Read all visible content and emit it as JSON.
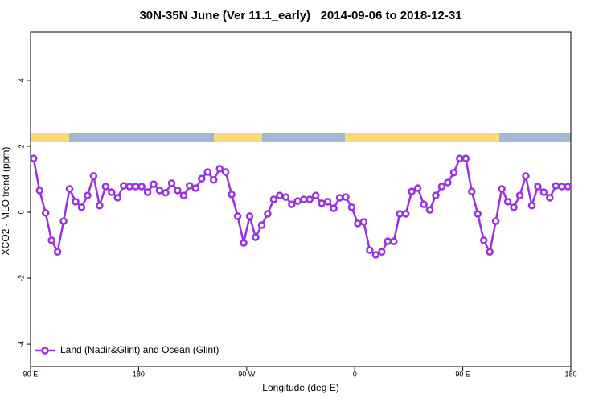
{
  "chart_data": {
    "type": "line",
    "title": "30N-35N June (Ver 11.1_early)   2014-09-06 to 2018-12-31",
    "x_label": "Longitude (deg E)",
    "y_label": "XCO2 - MLO trend (ppm)",
    "xlim": [
      90,
      540
    ],
    "ylim": [
      -4.68,
      5.46
    ],
    "xticks": [
      {
        "value": 90,
        "label": "90 E"
      },
      180,
      {
        "value": 270,
        "label": "90 W"
      },
      {
        "value": 360,
        "label": "0"
      },
      {
        "value": 450,
        "label": "90 E"
      },
      {
        "value": 540,
        "label": "180"
      }
    ],
    "yticks": [
      -4,
      -2,
      0,
      2,
      4
    ],
    "legend": "bottom-left",
    "x": [
      92.5,
      97.5,
      102.5,
      107.5,
      112.5,
      117.5,
      122.5,
      127.5,
      132.5,
      137.5,
      142.5,
      147.5,
      152.5,
      157.5,
      162.5,
      167.5,
      172.5,
      177.5,
      182.5,
      187.5,
      192.5,
      197.5,
      202.5,
      207.5,
      212.5,
      217.5,
      222.5,
      227.5,
      232.5,
      237.5,
      242.5,
      247.5,
      252.5,
      257.5,
      262.5,
      267.5,
      272.5,
      277.5,
      282.5,
      287.5,
      292.5,
      297.5,
      302.5,
      307.5,
      312.5,
      317.5,
      322.5,
      327.5,
      332.5,
      337.5,
      342.5,
      347.5,
      352.5,
      357.5,
      362.5,
      367.5,
      372.5,
      377.5,
      382.5,
      387.5,
      392.5,
      397.5,
      402.5,
      407.5,
      412.5,
      417.5,
      422.5,
      427.5,
      432.5,
      437.5,
      442.5,
      447.5,
      452.5,
      457.5,
      462.5,
      467.5,
      472.5,
      477.5,
      482.5,
      487.5,
      492.5,
      497.5,
      502.5,
      507.5,
      512.5,
      517.5,
      522.5,
      527.5,
      532.5,
      537.5
    ],
    "series": [
      {
        "name": "Land (Nadir&Glint) and Ocean (Glint)",
        "color": "#9b30e0",
        "values": [
          1.63,
          0.66,
          -0.02,
          -0.85,
          -1.2,
          -0.27,
          0.71,
          0.32,
          0.15,
          0.51,
          1.1,
          0.2,
          0.78,
          0.61,
          0.44,
          0.8,
          0.78,
          0.78,
          0.78,
          0.61,
          0.85,
          0.66,
          0.59,
          0.88,
          0.66,
          0.51,
          0.8,
          0.73,
          1.02,
          1.22,
          0.98,
          1.32,
          1.22,
          0.54,
          -0.12,
          -0.93,
          -0.12,
          -0.76,
          -0.39,
          -0.05,
          0.39,
          0.51,
          0.46,
          0.24,
          0.34,
          0.39,
          0.39,
          0.51,
          0.27,
          0.32,
          0.12,
          0.44,
          0.46,
          0.15,
          -0.34,
          -0.29,
          -1.15,
          -1.29,
          -1.2,
          -0.88,
          -0.88,
          -0.05,
          -0.05,
          0.63,
          0.73,
          0.24,
          0.07,
          0.51,
          0.78,
          0.9,
          1.2,
          1.63,
          1.63,
          0.63,
          -0.05,
          -0.85,
          -1.2,
          -0.27,
          0.71,
          0.32,
          0.15,
          0.51,
          1.1,
          0.2,
          0.78,
          0.61,
          0.44,
          0.8,
          0.78,
          0.78
        ]
      }
    ]
  }
}
